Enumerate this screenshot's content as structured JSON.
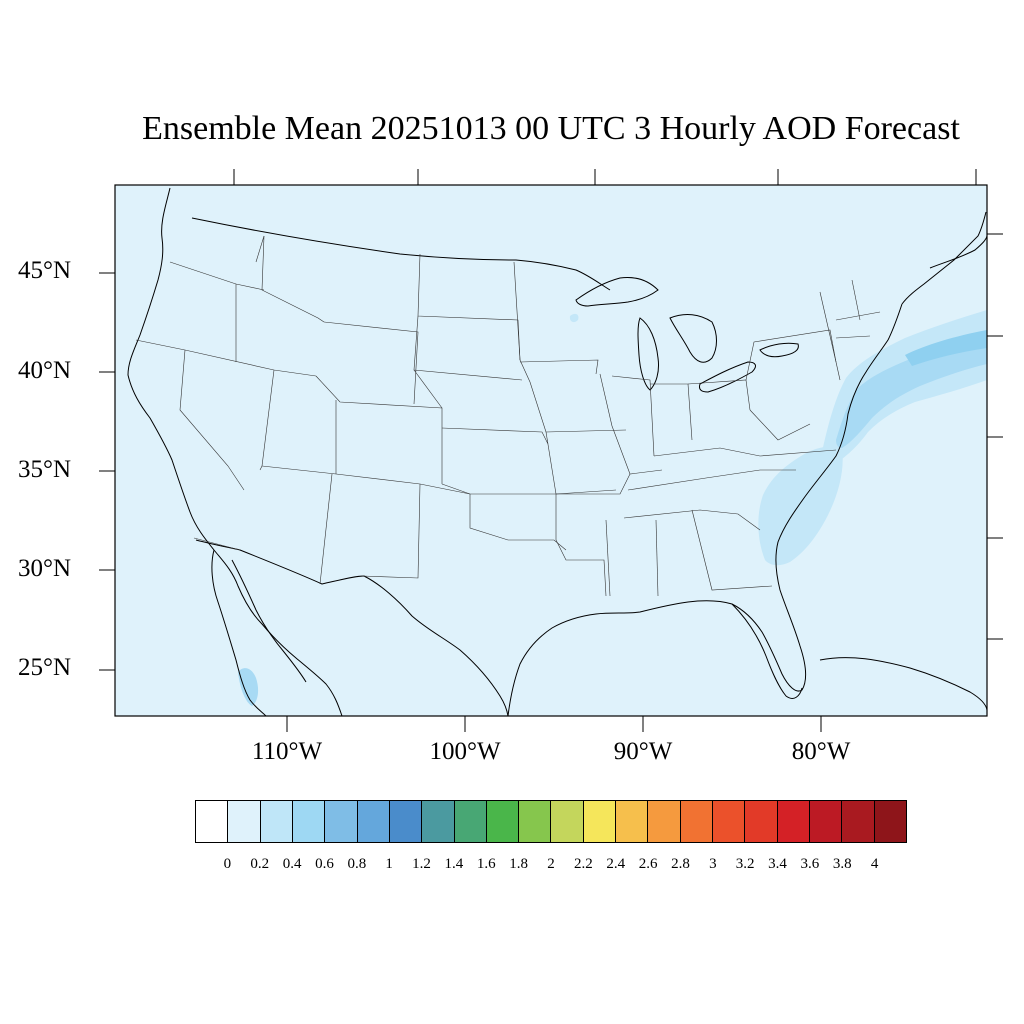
{
  "title": "Ensemble Mean 20251013 00 UTC 3 Hourly AOD Forecast",
  "latitude_labels": [
    "45°N",
    "40°N",
    "35°N",
    "30°N",
    "25°N"
  ],
  "longitude_labels": [
    "110°W",
    "100°W",
    "90°W",
    "80°W"
  ],
  "map": {
    "background_color": "#dff2fb",
    "aod_levels": {
      "low": "#c4e7f8",
      "medium": "#a8daf4",
      "higher": "#8fd0f0"
    },
    "plume_regions": [
      "Southeast coast (Carolinas, Georgia)",
      "Mid-Atlantic coast and offshore Atlantic",
      "Northeast offshore Atlantic",
      "Southern Baja California"
    ]
  },
  "colorbar": {
    "labels": [
      "0",
      "0.2",
      "0.4",
      "0.6",
      "0.8",
      "1",
      "1.2",
      "1.4",
      "1.6",
      "1.8",
      "2",
      "2.2",
      "2.4",
      "2.6",
      "2.8",
      "3",
      "3.2",
      "3.4",
      "3.6",
      "3.8",
      "4"
    ],
    "colors": [
      "#ffffff",
      "#dff2fb",
      "#bfe6f8",
      "#9ed8f3",
      "#7fbde6",
      "#64a7dc",
      "#4a8ccb",
      "#4b9aa0",
      "#48a774",
      "#4ab64a",
      "#86c64d",
      "#c4d65c",
      "#f5e65b",
      "#f6bf4c",
      "#f59a3e",
      "#f17232",
      "#eb512b",
      "#e23a28",
      "#d42126",
      "#bc1a24",
      "#a91a20",
      "#8e151a"
    ]
  }
}
